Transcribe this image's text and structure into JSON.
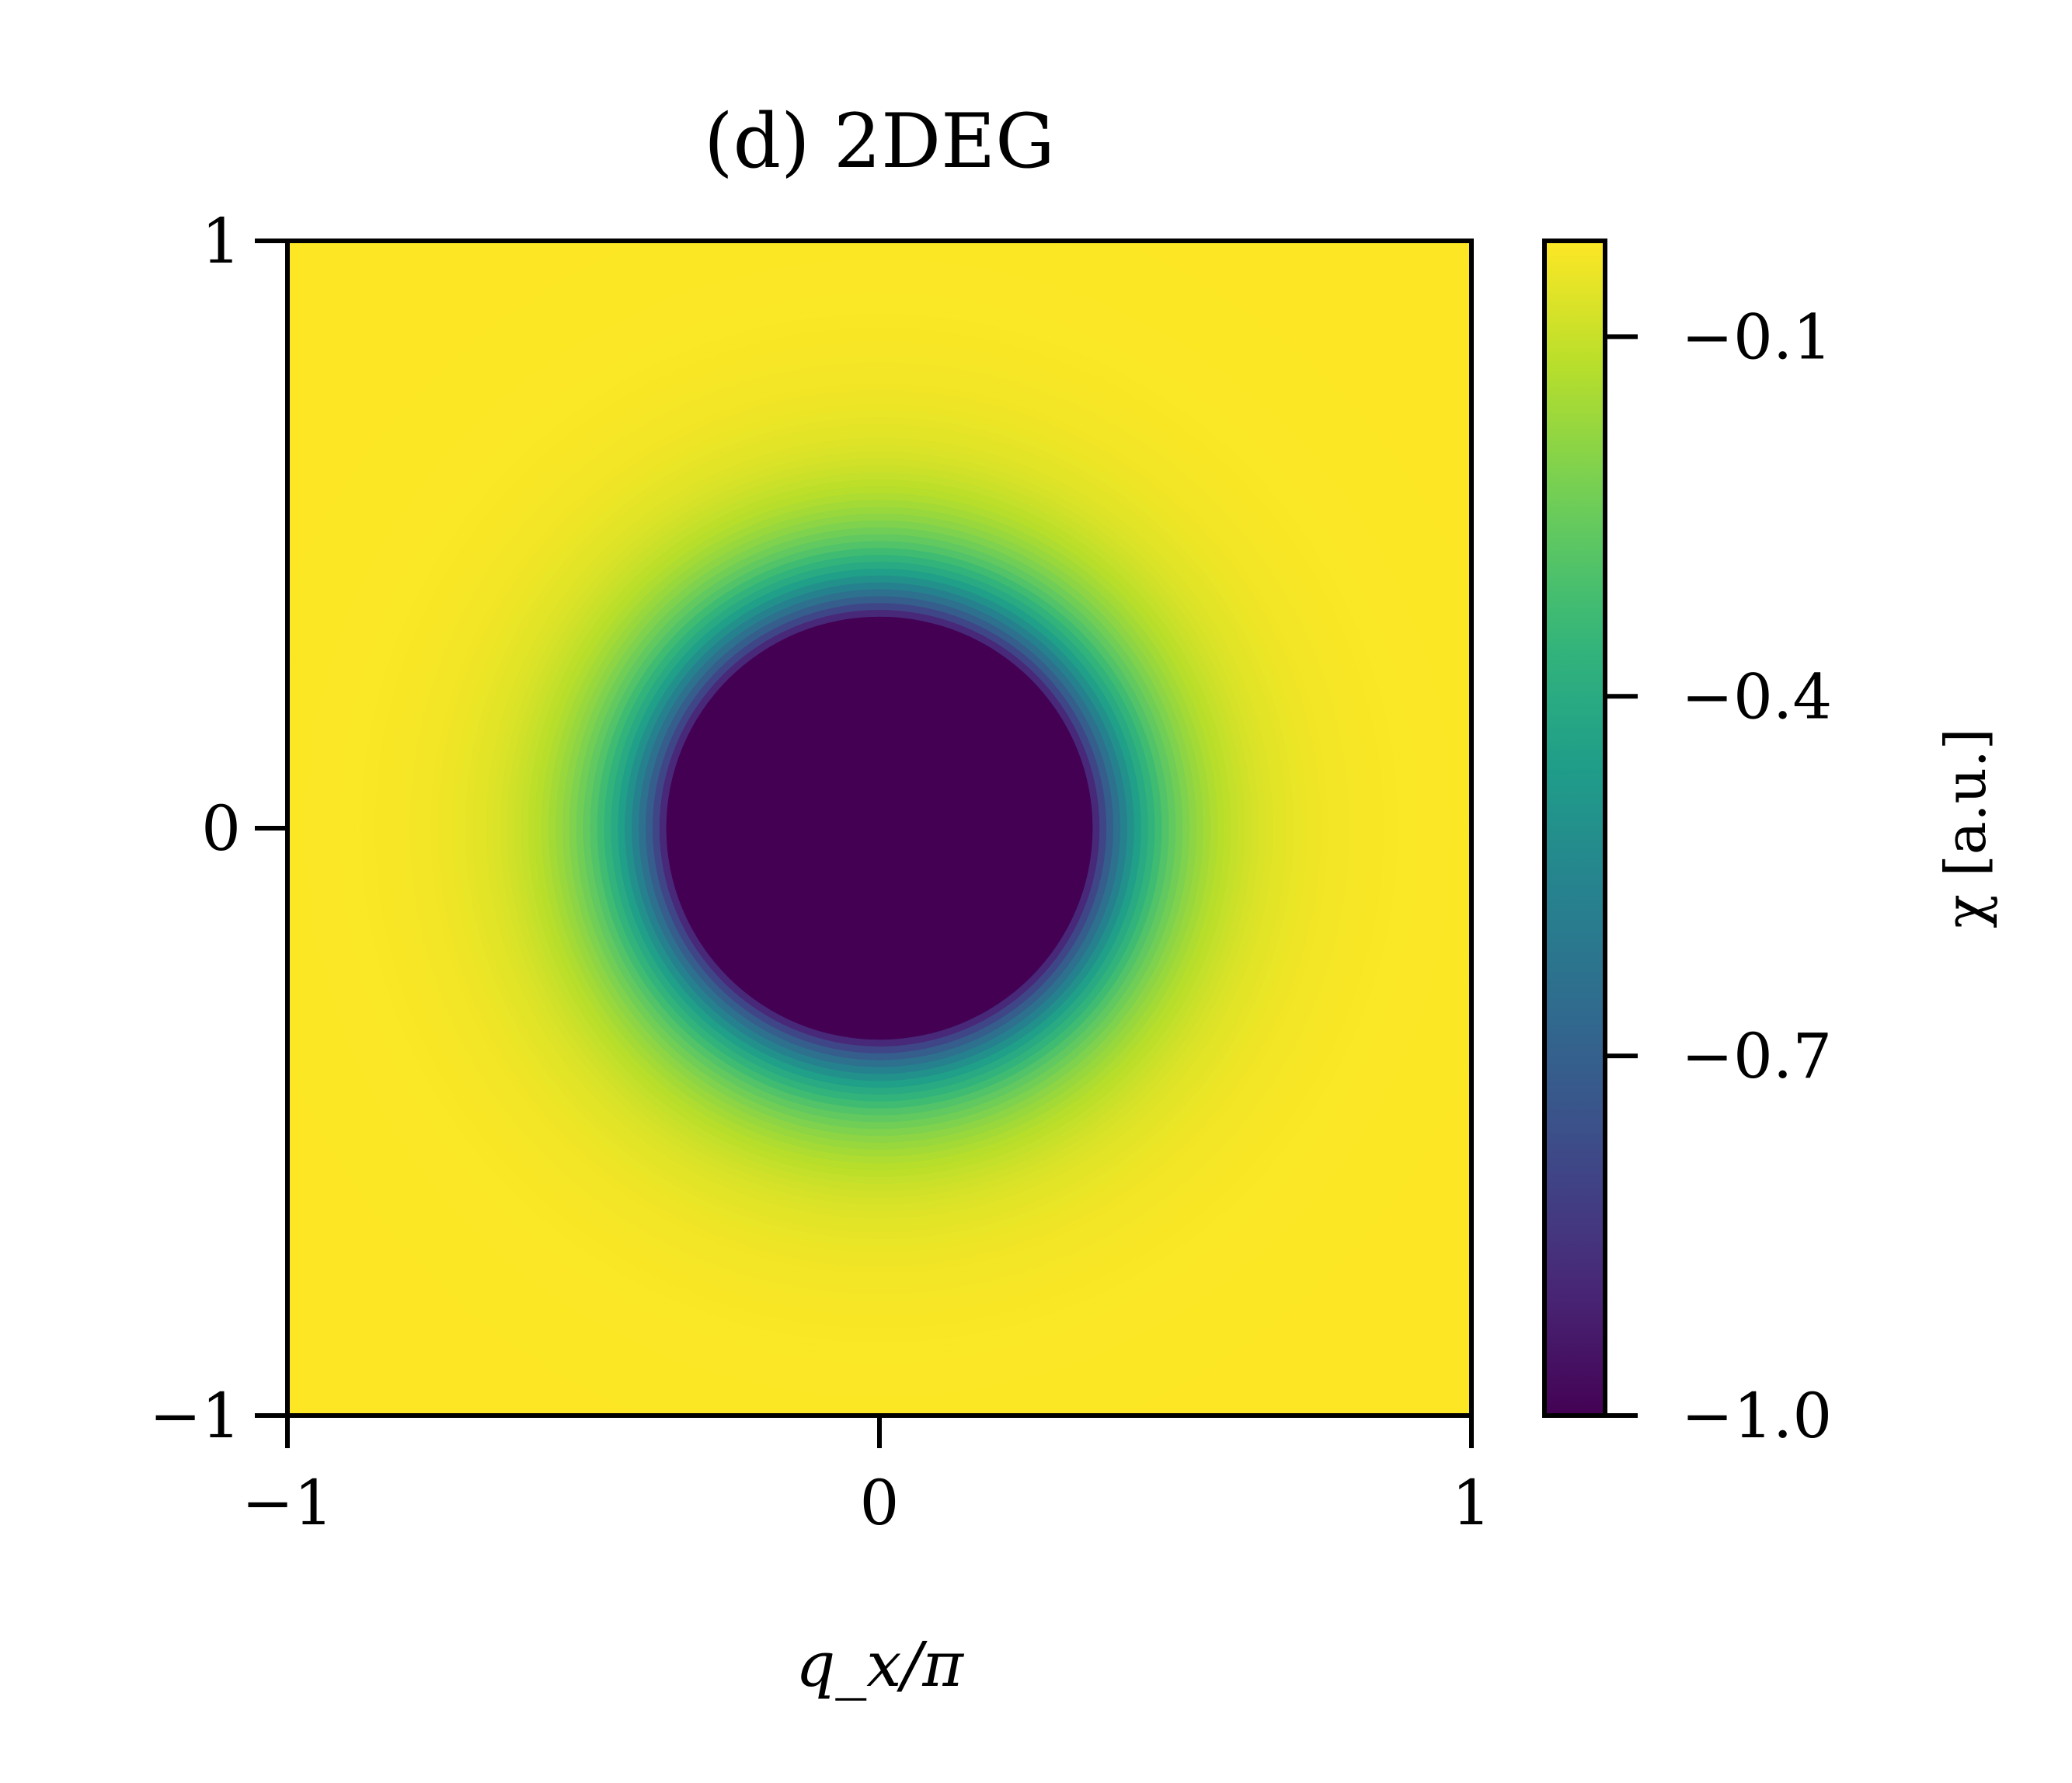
{
  "chart_data": {
    "type": "heatmap",
    "title": "(d) 2DEG",
    "xlabel": "q_x/π",
    "x_ticks": [
      -1,
      0,
      1
    ],
    "x_tick_labels": [
      "−1",
      "0",
      "1"
    ],
    "ylabel": "",
    "y_ticks": [
      -1,
      0,
      1
    ],
    "y_tick_labels": [
      "−1",
      "0",
      "1"
    ],
    "xlim": [
      -1,
      1
    ],
    "ylim": [
      -1,
      1
    ],
    "field": {
      "description": "radially symmetric susceptibility, constant minimum inside Fermi circle",
      "center": [
        0,
        0
      ],
      "plateau_radius": 0.36,
      "plateau_value": -1.0,
      "outer_value_at_corner": -0.02
    },
    "colorbar": {
      "label": "χ [a.u.]",
      "cmap": "viridis",
      "range": [
        -1.0,
        -0.02
      ],
      "ticks": [
        -0.1,
        -0.4,
        -0.7,
        -1.0
      ],
      "tick_labels": [
        "−0.1",
        "−0.4",
        "−0.7",
        "−1.0"
      ]
    },
    "grid": false
  }
}
